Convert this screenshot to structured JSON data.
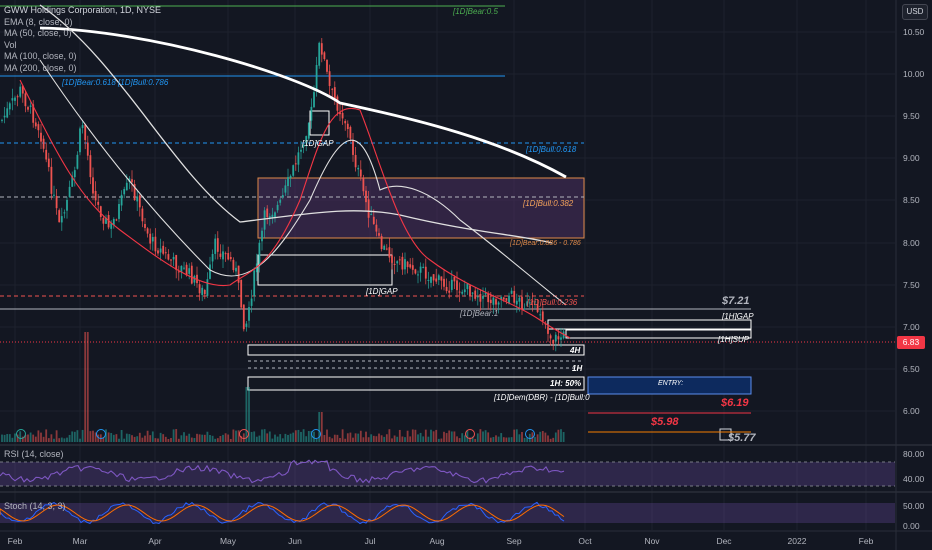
{
  "legend": {
    "title": "GWW Holdings Corporation, 1D, NYSE",
    "rows": [
      "EMA (8, close, 0)",
      "MA (50, close, 0)",
      "Vol",
      "MA (100, close, 0)",
      "MA (200, close, 0)"
    ]
  },
  "currency": "USD",
  "last_price": "6.83",
  "price_axis": [
    "10.50",
    "10.00",
    "9.50",
    "9.00",
    "8.50",
    "8.00",
    "7.50",
    "7.00",
    "6.50",
    "6.00"
  ],
  "rsi_pane": {
    "label": "RSI (14, close)",
    "ticks": [
      "80.00",
      "40.00"
    ]
  },
  "stoch_pane": {
    "label": "Stoch (14, 3, 3)",
    "ticks": [
      "50.00",
      "0.00"
    ]
  },
  "time_axis": [
    "Feb",
    "Mar",
    "Apr",
    "May",
    "Jun",
    "Jul",
    "Aug",
    "Sep",
    "Oct",
    "Nov",
    "Dec",
    "2022",
    "Feb"
  ],
  "annotations": {
    "bear_05": "[1D]Bear:0.5",
    "bear_bull_fib": "[1D]Bear:0.618 [1D]Bull:0.786",
    "bull_0618": "[1D]Bull:0.618",
    "gap_1d_top": "[1D]GAP",
    "bull_0382": "[1D]Bull:0.382",
    "bear_0886": "[1D]Bear:0.886 - 0.786",
    "gap_1d_mid": "[1D]GAP",
    "bull_0236": "[1D]Bull:0.236",
    "bear_1": "[1D]Bear:1",
    "gap_1h": "[1H]GAP",
    "sup_1h": "[1H]SUP",
    "zone_4h": "4H",
    "zone_1h": "1H",
    "zone_1h50": "1H: 50%",
    "dem": "[1D]Dem(DBR) - [1D]Bull:0",
    "entry": "ENTRY:",
    "price_721": "$7.21",
    "price_619": "$6.19",
    "price_598": "$5.98",
    "price_577": "$5.77"
  },
  "colors": {
    "bg": "#131722",
    "up": "#26a69a",
    "down": "#ef5350",
    "ema": "#f23645",
    "ma50": "#2196f3",
    "ma100": "#e0e0e0",
    "ma200": "#ffffff",
    "rsi": "#7e57c2",
    "stoch_k": "#2962ff",
    "stoch_d": "#ff6d00"
  }
}
